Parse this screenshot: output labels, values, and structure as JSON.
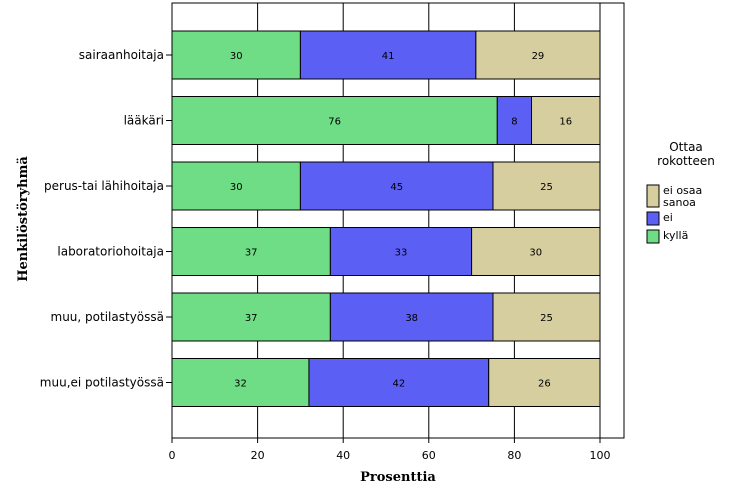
{
  "chart_data": {
    "type": "bar",
    "orientation": "horizontal",
    "stacked": true,
    "categories": [
      "sairaanhoitaja",
      "lääkäri",
      "perus-tai lähihoitaja",
      "laboratoriohoitaja",
      "muu, potilastyössä",
      "muu,ei potilastyössä"
    ],
    "series": [
      {
        "name": "kyllä",
        "color": "#6fdd85",
        "values": [
          30,
          76,
          30,
          37,
          37,
          32
        ]
      },
      {
        "name": "ei",
        "color": "#5b5ff3",
        "values": [
          41,
          8,
          45,
          33,
          38,
          42
        ]
      },
      {
        "name": "ei osaa sanoa",
        "color": "#d6ce9f",
        "values": [
          29,
          16,
          25,
          30,
          25,
          26
        ]
      }
    ],
    "xlabel": "Prosenttia",
    "ylabel": "Henkilöstöryhmä",
    "xlim": [
      0,
      100
    ],
    "xticks": [
      "0",
      "20",
      "40",
      "60",
      "80",
      "100"
    ],
    "grid": "vertical",
    "legend": {
      "title_lines": [
        "Ottaa",
        "rokotteen"
      ],
      "placement": "right",
      "entries": [
        {
          "lines": [
            "ei osaa",
            "sanoa"
          ],
          "color": "#d6ce9f"
        },
        {
          "lines": [
            "ei"
          ],
          "color": "#5b5ff3"
        },
        {
          "lines": [
            "kyllä"
          ],
          "color": "#6fdd85"
        }
      ]
    }
  }
}
